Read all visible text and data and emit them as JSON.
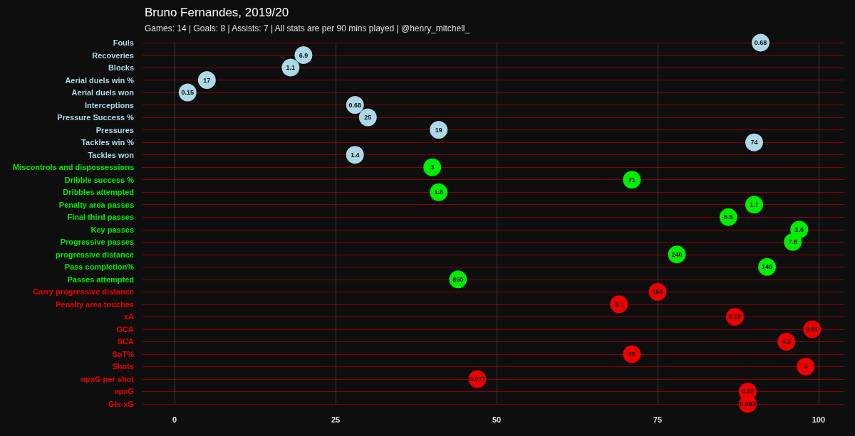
{
  "chart_data": {
    "type": "scatter",
    "orientation": "horizontal",
    "title": "Bruno Fernandes, 2019/20",
    "subtitle": "Games: 14 | Goals: 8 | Assists: 7 | All stats are per 90 mins played | @henry_mitchell_",
    "categories": [
      "Fouls",
      "Recoveries",
      "Blocks",
      "Aerial duels win %",
      "Aerial duels won",
      "Interceptions",
      "Pressure Success %",
      "Pressures",
      "Tackles win %",
      "Tackles won",
      "Miscontrols and dispossessions",
      "Dribble success %",
      "Dribbles attempted",
      "Penalty area passes",
      "Final third passes",
      "Key passes",
      "Progressive passes",
      "progressive distance",
      "Pass completion%",
      "Passes attempted",
      "Carry progressive distance",
      "Penalty area touches",
      "xA",
      "GCA",
      "SCA",
      "SoT%",
      "Shots",
      "npxG per shot",
      "npxG",
      "Gls-xG"
    ],
    "series": [
      {
        "color": "#add8e6",
        "values": [
          91,
          20,
          18,
          5,
          2,
          28,
          30,
          41,
          90,
          28,
          null,
          null,
          null,
          null,
          null,
          null,
          null,
          null,
          null,
          null,
          null,
          null,
          null,
          null,
          null,
          null,
          null,
          null,
          null,
          null
        ]
      },
      {
        "color": "#00ee00",
        "values": [
          null,
          null,
          null,
          null,
          null,
          null,
          null,
          null,
          null,
          null,
          40,
          71,
          41,
          90,
          86,
          97,
          96,
          78,
          92,
          44,
          null,
          null,
          null,
          null,
          null,
          null,
          null,
          null,
          null,
          null
        ]
      },
      {
        "color": "#ee0000",
        "values": [
          null,
          null,
          null,
          null,
          null,
          null,
          null,
          null,
          null,
          null,
          null,
          null,
          null,
          null,
          null,
          null,
          null,
          null,
          null,
          null,
          75,
          69,
          87,
          99,
          95,
          71,
          98,
          47,
          89,
          89
        ]
      }
    ],
    "annotations": [
      {
        "text": "0.68",
        "x": 91,
        "y": "Fouls"
      },
      {
        "text": "6.9",
        "x": 20,
        "y": "Recoveries"
      },
      {
        "text": "1.1",
        "x": 18,
        "y": "Blocks"
      },
      {
        "text": "17",
        "x": 5,
        "y": "Aerial duels win %"
      },
      {
        "text": "0.15",
        "x": 2,
        "y": "Aerial duels won"
      },
      {
        "text": "0.68",
        "x": 28,
        "y": "Interceptions"
      },
      {
        "text": "25",
        "x": 30,
        "y": "Pressure Success %"
      },
      {
        "text": "19",
        "x": 41,
        "y": "Pressures"
      },
      {
        "text": "74",
        "x": 90,
        "y": "Tackles win %"
      },
      {
        "text": "1.4",
        "x": 28,
        "y": "Tackles won"
      },
      {
        "text": "3",
        "x": 40,
        "y": "Miscontrols and dispossessions"
      },
      {
        "text": "71",
        "x": 71,
        "y": "Dribble success %"
      },
      {
        "text": "1.6",
        "x": 41,
        "y": "Dribbles attempted"
      },
      {
        "text": "1.7",
        "x": 90,
        "y": "Penalty area passes"
      },
      {
        "text": "5.5",
        "x": 86,
        "y": "Final third passes"
      },
      {
        "text": "2.6",
        "x": 97,
        "y": "Key passes"
      },
      {
        "text": "7.6",
        "x": 96,
        "y": "Progressive passes"
      },
      {
        "text": "240",
        "x": 78,
        "y": "progressive distance"
      },
      {
        "text": "140",
        "x": 92,
        "y": "Pass completion%"
      },
      {
        "text": "850",
        "x": 44,
        "y": "Passes attempted"
      },
      {
        "text": "150",
        "x": 75,
        "y": "Carry progressive distance"
      },
      {
        "text": "3.1",
        "x": 69,
        "y": "Penalty area touches"
      },
      {
        "text": "0.19",
        "x": 87,
        "y": "xA"
      },
      {
        "text": "0.91",
        "x": 99,
        "y": "GCA"
      },
      {
        "text": "4.3",
        "x": 95,
        "y": "SCA"
      },
      {
        "text": "35",
        "x": 71,
        "y": "SoT%"
      },
      {
        "text": "3",
        "x": 98,
        "y": "Shots"
      },
      {
        "text": "0.077",
        "x": 47,
        "y": "npxG per shot"
      },
      {
        "text": "0.22",
        "x": 89,
        "y": "npxG"
      },
      {
        "text": "0.083",
        "x": 89,
        "y": "Gls-xG"
      }
    ],
    "xlim": [
      -5,
      104
    ],
    "xticks": [
      0,
      25,
      50,
      75,
      100
    ],
    "grid": true,
    "marker": "circle"
  }
}
